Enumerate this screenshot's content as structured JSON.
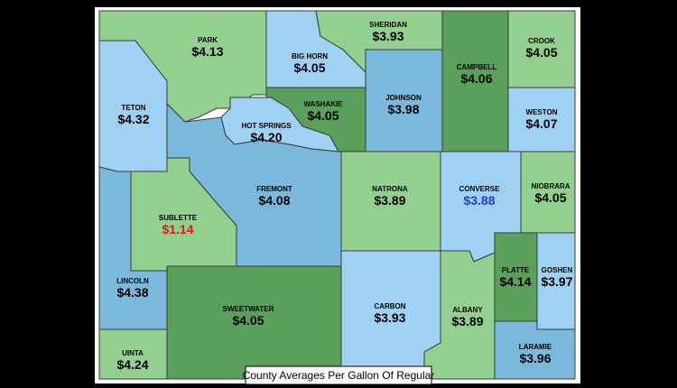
{
  "map": {
    "caption": "County Averages Per Gallon Of Regular",
    "counties": [
      {
        "name": "PARK",
        "price": "$4.13"
      },
      {
        "name": "BIG HORN",
        "price": "$4.05"
      },
      {
        "name": "SHERIDAN",
        "price": "$3.93"
      },
      {
        "name": "CAMPBELL",
        "price": "$4.06"
      },
      {
        "name": "CROOK",
        "price": "$4.05"
      },
      {
        "name": "TETON",
        "price": "$4.32"
      },
      {
        "name": "WASHAKIE",
        "price": "$4.05"
      },
      {
        "name": "JOHNSON",
        "price": "$3.98"
      },
      {
        "name": "HOT SPRINGS",
        "price": "$4.20"
      },
      {
        "name": "WESTON",
        "price": "$4.07"
      },
      {
        "name": "FREMONT",
        "price": "$4.08"
      },
      {
        "name": "NATRONA",
        "price": "$3.89"
      },
      {
        "name": "CONVERSE",
        "price": "$3.88"
      },
      {
        "name": "NIOBRARA",
        "price": "$4.05"
      },
      {
        "name": "SUBLETTE",
        "price": "$1.14"
      },
      {
        "name": "LINCOLN",
        "price": "$4.38"
      },
      {
        "name": "PLATTE",
        "price": "$4.14"
      },
      {
        "name": "GOSHEN",
        "price": "$3.97"
      },
      {
        "name": "SWEETWATER",
        "price": "$4.05"
      },
      {
        "name": "CARBON",
        "price": "$3.93"
      },
      {
        "name": "ALBANY",
        "price": "$3.89"
      },
      {
        "name": "UINTA",
        "price": "$4.24"
      },
      {
        "name": "LARAMIE",
        "price": "$3.96"
      }
    ]
  }
}
